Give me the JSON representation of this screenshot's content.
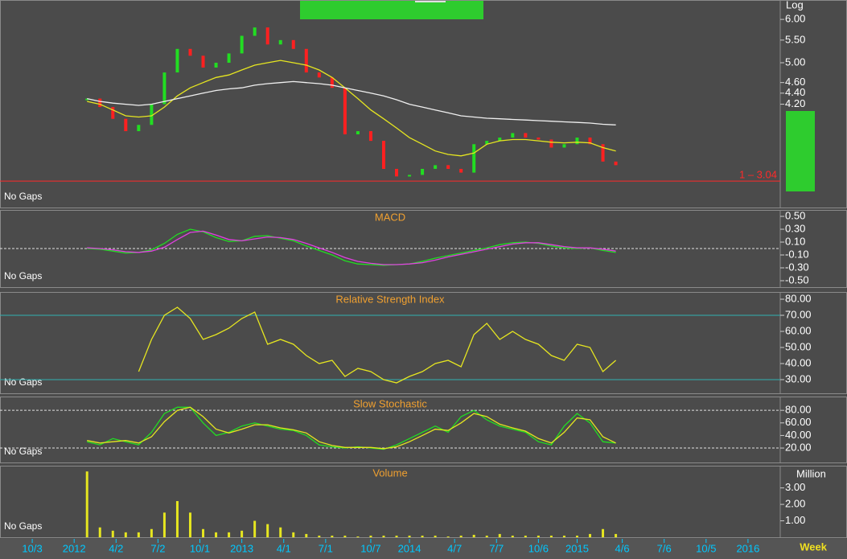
{
  "chart_data": [
    {
      "type": "candlestick",
      "log_scale": true,
      "scale_label": "Log",
      "status_label": "No Gaps",
      "x": [
        17,
        21,
        25,
        29,
        33,
        37,
        41,
        45,
        49,
        53,
        57,
        61,
        65,
        69,
        73,
        77,
        81,
        85,
        89,
        93,
        97,
        101,
        105,
        109,
        113,
        117,
        121,
        125,
        129,
        133,
        137,
        141,
        145,
        149,
        153,
        157,
        161,
        165,
        169,
        173,
        177,
        181
      ],
      "xlim": [
        -10,
        232
      ],
      "xticks": [
        {
          "value": 0,
          "label": "10/3"
        },
        {
          "value": 13,
          "label": "2012"
        },
        {
          "value": 26,
          "label": "4/2"
        },
        {
          "value": 39,
          "label": "7/2"
        },
        {
          "value": 52,
          "label": "10/1"
        },
        {
          "value": 65,
          "label": "2013"
        },
        {
          "value": 78,
          "label": "4/1"
        },
        {
          "value": 91,
          "label": "7/1"
        },
        {
          "value": 105,
          "label": "10/7"
        },
        {
          "value": 117,
          "label": "2014"
        },
        {
          "value": 131,
          "label": "4/7"
        },
        {
          "value": 144,
          "label": "7/7"
        },
        {
          "value": 157,
          "label": "10/6"
        },
        {
          "value": 169,
          "label": "2015"
        },
        {
          "value": 183,
          "label": "4/6"
        },
        {
          "value": 196,
          "label": "7/6"
        },
        {
          "value": 209,
          "label": "10/5"
        },
        {
          "value": 222,
          "label": "2016"
        }
      ],
      "x_unit_label": "Week",
      "ylim": [
        2.72,
        6.51
      ],
      "yticks": [
        {
          "value": 6,
          "label": "6.00"
        },
        {
          "value": 5.5,
          "label": "5.50"
        },
        {
          "value": 5,
          "label": "5.00"
        },
        {
          "value": 4.6,
          "label": "4.60"
        },
        {
          "value": 4.4,
          "label": "4.40"
        },
        {
          "value": 4.2,
          "label": "4.20"
        }
      ],
      "hline": {
        "value": 3.04,
        "label": "1 – 3.04",
        "color": "#ff2a2a"
      },
      "series": [
        {
          "style": "candle",
          "up_color": "#22dd22",
          "down_color": "#ff2020",
          "values": [
            4.3,
            4.15,
            3.95,
            3.75,
            3.85,
            4.2,
            4.8,
            5.3,
            5.15,
            4.9,
            5.0,
            5.2,
            5.6,
            5.8,
            5.4,
            5.5,
            5.3,
            4.8,
            4.7,
            4.5,
            3.7,
            3.75,
            3.6,
            3.2,
            3.1,
            3.12,
            3.2,
            3.25,
            3.2,
            3.15,
            3.55,
            3.6,
            3.65,
            3.72,
            3.65,
            3.62,
            3.5,
            3.55,
            3.65,
            3.55,
            3.3,
            3.25
          ]
        },
        {
          "style": "line",
          "color": "#e6e620",
          "values": [
            4.25,
            4.2,
            4.1,
            4.0,
            3.98,
            4.0,
            4.15,
            4.35,
            4.5,
            4.6,
            4.7,
            4.75,
            4.85,
            4.95,
            5.0,
            5.05,
            5.0,
            4.95,
            4.85,
            4.7,
            4.5,
            4.3,
            4.1,
            3.95,
            3.8,
            3.65,
            3.55,
            3.45,
            3.4,
            3.38,
            3.42,
            3.55,
            3.6,
            3.62,
            3.62,
            3.6,
            3.58,
            3.57,
            3.58,
            3.57,
            3.5,
            3.45
          ]
        },
        {
          "style": "line",
          "color": "#f0f0f0",
          "values": [
            4.3,
            4.25,
            4.22,
            4.2,
            4.18,
            4.2,
            4.25,
            4.3,
            4.35,
            4.4,
            4.45,
            4.48,
            4.5,
            4.55,
            4.58,
            4.6,
            4.62,
            4.6,
            4.58,
            4.55,
            4.5,
            4.45,
            4.4,
            4.35,
            4.28,
            4.2,
            4.15,
            4.1,
            4.05,
            4.0,
            3.98,
            3.96,
            3.95,
            3.94,
            3.93,
            3.92,
            3.91,
            3.9,
            3.89,
            3.88,
            3.86,
            3.85
          ]
        }
      ]
    },
    {
      "type": "line",
      "title": "MACD",
      "status_label": "No Gaps",
      "ylim": [
        -0.6,
        0.6
      ],
      "yticks": [
        {
          "value": 0.5,
          "label": "0.50"
        },
        {
          "value": 0.3,
          "label": "0.30"
        },
        {
          "value": 0.1,
          "label": "0.10"
        },
        {
          "value": -0.1,
          "label": "-0.10"
        },
        {
          "value": -0.3,
          "label": "-0.30"
        },
        {
          "value": -0.5,
          "label": "-0.50"
        }
      ],
      "levels": [
        0
      ],
      "level_color": "#e0e0e0",
      "series": [
        {
          "color": "#22dd22",
          "values": [
            0,
            -0.01,
            -0.04,
            -0.07,
            -0.06,
            -0.02,
            0.08,
            0.22,
            0.3,
            0.26,
            0.17,
            0.11,
            0.12,
            0.19,
            0.2,
            0.16,
            0.12,
            0.04,
            -0.03,
            -0.1,
            -0.19,
            -0.24,
            -0.25,
            -0.26,
            -0.25,
            -0.24,
            -0.2,
            -0.15,
            -0.11,
            -0.07,
            -0.03,
            0.01,
            0.06,
            0.09,
            0.1,
            0.08,
            0.04,
            0.01,
            0,
            0.01,
            -0.03,
            -0.06
          ]
        },
        {
          "color": "#e040e0",
          "values": [
            0.01,
            0,
            -0.02,
            -0.05,
            -0.06,
            -0.04,
            0.02,
            0.14,
            0.25,
            0.27,
            0.21,
            0.14,
            0.12,
            0.15,
            0.18,
            0.17,
            0.14,
            0.08,
            0.01,
            -0.06,
            -0.14,
            -0.2,
            -0.23,
            -0.25,
            -0.25,
            -0.24,
            -0.22,
            -0.18,
            -0.13,
            -0.09,
            -0.05,
            -0.01,
            0.03,
            0.07,
            0.09,
            0.09,
            0.06,
            0.03,
            0.01,
            0.01,
            -0.01,
            -0.04
          ]
        }
      ]
    },
    {
      "type": "line",
      "title": "Relative Strength Index",
      "status_label": "No Gaps",
      "ylim": [
        21.5,
        84.5
      ],
      "yticks": [
        {
          "value": 80,
          "label": "80.00"
        },
        {
          "value": 70,
          "label": "70.00"
        },
        {
          "value": 60,
          "label": "60.00"
        },
        {
          "value": 50,
          "label": "50.00"
        },
        {
          "value": 40,
          "label": "40.00"
        },
        {
          "value": 30,
          "label": "30.00"
        }
      ],
      "levels": [
        70,
        30
      ],
      "level_color": "#30b0b0",
      "series": [
        {
          "color": "#e6e620",
          "values": [
            null,
            null,
            null,
            null,
            35,
            55,
            70,
            75,
            68,
            55,
            58,
            62,
            68,
            72,
            52,
            55,
            52,
            45,
            40,
            42,
            32,
            37,
            35,
            30,
            28,
            32,
            35,
            40,
            42,
            38,
            58,
            65,
            55,
            60,
            55,
            52,
            45,
            42,
            52,
            50,
            35,
            42
          ]
        }
      ]
    },
    {
      "type": "line",
      "title": "Slow Stochastic",
      "status_label": "No Gaps",
      "ylim": [
        -3,
        102
      ],
      "yticks": [
        {
          "value": 80,
          "label": "80.00"
        },
        {
          "value": 60,
          "label": "60.00"
        },
        {
          "value": 40,
          "label": "40.00"
        },
        {
          "value": 20,
          "label": "20.00"
        }
      ],
      "levels": [
        80,
        20
      ],
      "level_color": "#e0e0e0",
      "series": [
        {
          "color": "#22dd22",
          "values": [
            30,
            25,
            35,
            30,
            25,
            45,
            75,
            85,
            85,
            60,
            40,
            45,
            55,
            60,
            55,
            50,
            48,
            40,
            25,
            22,
            20,
            22,
            20,
            18,
            25,
            35,
            45,
            55,
            45,
            70,
            80,
            65,
            55,
            50,
            45,
            30,
            25,
            55,
            75,
            60,
            30,
            28
          ]
        },
        {
          "color": "#e6e620",
          "values": [
            32,
            28,
            30,
            32,
            28,
            38,
            62,
            80,
            85,
            70,
            50,
            44,
            50,
            57,
            57,
            52,
            49,
            44,
            30,
            24,
            21,
            21,
            21,
            19,
            22,
            30,
            40,
            50,
            48,
            60,
            75,
            70,
            58,
            52,
            47,
            35,
            28,
            45,
            68,
            65,
            38,
            28
          ]
        }
      ]
    },
    {
      "type": "bar",
      "title": "Volume",
      "status_label": "No Gaps",
      "y_unit_label": "Million",
      "ylim": [
        0,
        4.35
      ],
      "yticks": [
        {
          "value": 3,
          "label": "3.00"
        },
        {
          "value": 2,
          "label": "2.00"
        },
        {
          "value": 1,
          "label": "1.00"
        }
      ],
      "series": [
        {
          "color": "#e6e620",
          "values": [
            4.0,
            0.6,
            0.4,
            0.3,
            0.3,
            0.5,
            1.5,
            2.2,
            1.5,
            0.5,
            0.3,
            0.3,
            0.4,
            1.0,
            0.8,
            0.6,
            0.3,
            0.2,
            0.1,
            0.1,
            0.1,
            0.05,
            0.1,
            0.1,
            0.1,
            0.1,
            0.1,
            0.1,
            0.05,
            0.1,
            0.15,
            0.1,
            0.2,
            0.1,
            0.1,
            0.1,
            0.1,
            0.1,
            0.1,
            0.2,
            0.5,
            0.2
          ]
        }
      ]
    }
  ]
}
